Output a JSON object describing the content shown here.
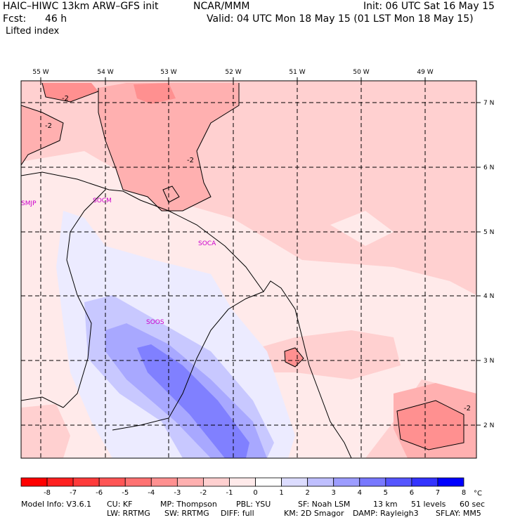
{
  "header": {
    "model_line": "HAIC–HIWC 13km ARW–GFS init",
    "center": "NCAR/MMM",
    "init": "Init: 06 UTC Sat 16 May 15",
    "fcst_label": "Fcst:",
    "fcst_hours": "46 h",
    "valid": "Valid: 04 UTC Mon 18 May 15 (01 LST Mon 18 May 15)",
    "field": "Lifted index"
  },
  "map": {
    "lon_labels": [
      "55 W",
      "54 W",
      "53 W",
      "52 W",
      "51 W",
      "50 W",
      "49 W"
    ],
    "lat_labels": [
      "7 N",
      "6 N",
      "5 N",
      "4 N",
      "3 N",
      "2 N"
    ],
    "stations": [
      "SMJP",
      "SOCM",
      "SOCA",
      "SOOS"
    ],
    "contour_labels": [
      "-2",
      "-2",
      "-2",
      "-2"
    ],
    "station_color": "#cc00cc"
  },
  "colorbar": {
    "ticks": [
      "-8",
      "-7",
      "-6",
      "-5",
      "-4",
      "-3",
      "-2",
      "-1",
      "0",
      "1",
      "2",
      "3",
      "4",
      "5",
      "6",
      "7",
      "8"
    ],
    "unit": "°C",
    "colors": [
      "#ff0000",
      "#ff2020",
      "#ff3b3b",
      "#ff5555",
      "#ff7272",
      "#ff9090",
      "#ffb0b0",
      "#ffd0d0",
      "#ffeaea",
      "#ffffff",
      "#dcdcff",
      "#bfbfff",
      "#9c9cff",
      "#7878ff",
      "#5555ff",
      "#3333ff",
      "#0000ff"
    ]
  },
  "footer": {
    "line1_items": [
      "Model Info: V3.6.1",
      "CU: KF",
      "MP: Thompson",
      "PBL: YSU",
      "SF: Noah LSM",
      "13 km",
      "51 levels",
      "60 sec"
    ],
    "line2_items": [
      "LW: RRTMG",
      "SW: RRTMG",
      "DIFF: full",
      "KM: 2D Smagor",
      "DAMP: Rayleigh3",
      "SFLAY: MM5"
    ]
  }
}
